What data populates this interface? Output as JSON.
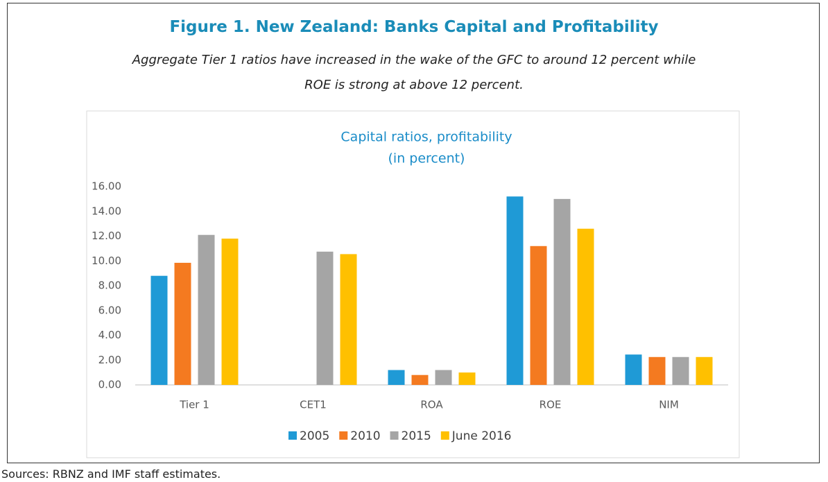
{
  "figure_title": "Figure 1. New Zealand: Banks Capital and Profitability",
  "figure_subtitle": [
    "Aggregate Tier 1 ratios have increased in the wake of the GFC to around 12 percent while",
    "ROE is strong at above 12 percent."
  ],
  "source": "Sources: RBNZ and IMF staff estimates.",
  "chart_data": {
    "type": "bar",
    "title": "Capital ratios, profitability",
    "subtitle": "(in percent)",
    "categories": [
      "Tier 1",
      "CET1",
      "ROA",
      "ROE",
      "NIM"
    ],
    "series": [
      {
        "name": "2005",
        "color": "#1f9ad6",
        "values": [
          8.8,
          null,
          1.2,
          15.2,
          2.45
        ]
      },
      {
        "name": "2010",
        "color": "#f47a20",
        "values": [
          9.85,
          null,
          0.8,
          11.2,
          2.25
        ]
      },
      {
        "name": "2015",
        "color": "#a5a5a5",
        "values": [
          12.1,
          10.75,
          1.2,
          15.0,
          2.25
        ]
      },
      {
        "name": "June 2016",
        "color": "#ffc000",
        "values": [
          11.8,
          10.55,
          1.0,
          12.6,
          2.25
        ]
      }
    ],
    "ylim": [
      0,
      16
    ],
    "yticks": [
      {
        "value": 0,
        "label": "0.00"
      },
      {
        "value": 2,
        "label": "2.00"
      },
      {
        "value": 4,
        "label": "4.00"
      },
      {
        "value": 6,
        "label": "6.00"
      },
      {
        "value": 8,
        "label": "8.00"
      },
      {
        "value": 10,
        "label": "10.00"
      },
      {
        "value": 12,
        "label": "12.00"
      },
      {
        "value": 14,
        "label": "14.00"
      },
      {
        "value": 16,
        "label": "16.00"
      }
    ],
    "grid": false,
    "legend": "bottom"
  }
}
